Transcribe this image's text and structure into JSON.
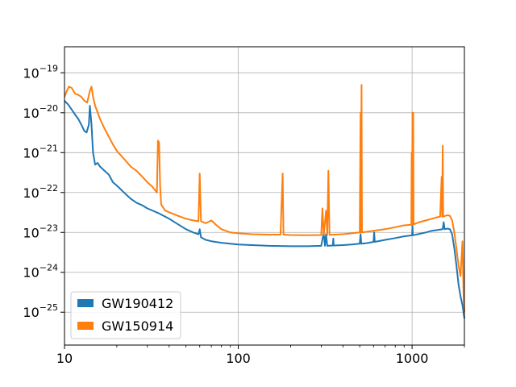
{
  "chart_data": {
    "type": "line",
    "title": "",
    "xlabel": "",
    "ylabel": "",
    "x_scale": "log",
    "y_scale": "log",
    "xlim": [
      10,
      2000
    ],
    "ylim": [
      1.5e-26,
      4.5e-19
    ],
    "grid": true,
    "legend_position": "lower-left",
    "x_ticks": [
      {
        "value": 10,
        "label": "10"
      },
      {
        "value": 100,
        "label": "100"
      },
      {
        "value": 1000,
        "label": "1000"
      }
    ],
    "y_ticks": [
      {
        "value": 1e-25,
        "mantissa": "10",
        "exponent": "−25"
      },
      {
        "value": 1e-24,
        "mantissa": "10",
        "exponent": "−24"
      },
      {
        "value": 1e-23,
        "mantissa": "10",
        "exponent": "−23"
      },
      {
        "value": 1e-22,
        "mantissa": "10",
        "exponent": "−22"
      },
      {
        "value": 1e-21,
        "mantissa": "10",
        "exponent": "−21"
      },
      {
        "value": 1e-20,
        "mantissa": "10",
        "exponent": "−20"
      },
      {
        "value": 1e-19,
        "mantissa": "10",
        "exponent": "−19"
      }
    ],
    "series": [
      {
        "name": "GW190412",
        "color": "#1f77b4",
        "points": [
          [
            10,
            2e-20
          ],
          [
            10.5,
            1.6e-20
          ],
          [
            11,
            1.2e-20
          ],
          [
            11.5,
            9e-21
          ],
          [
            12,
            7e-21
          ],
          [
            12.5,
            5e-21
          ],
          [
            13,
            3.5e-21
          ],
          [
            13.4,
            3.2e-21
          ],
          [
            13.8,
            5e-21
          ],
          [
            14.0,
            1.5e-20
          ],
          [
            14.3,
            5e-21
          ],
          [
            14.6,
            1e-21
          ],
          [
            15,
            5e-22
          ],
          [
            15.5,
            5.5e-22
          ],
          [
            16,
            4.5e-22
          ],
          [
            17,
            3.5e-22
          ],
          [
            18,
            2.8e-22
          ],
          [
            19,
            1.8e-22
          ],
          [
            20,
            1.5e-22
          ],
          [
            22,
            1e-22
          ],
          [
            24,
            7e-23
          ],
          [
            26,
            5.5e-23
          ],
          [
            28,
            4.8e-23
          ],
          [
            30,
            4e-23
          ],
          [
            35,
            3e-23
          ],
          [
            40,
            2.2e-23
          ],
          [
            45,
            1.6e-23
          ],
          [
            50,
            1.2e-23
          ],
          [
            55,
            1e-23
          ],
          [
            59,
            9e-24
          ],
          [
            60,
            1.2e-23
          ],
          [
            61,
            7.5e-24
          ],
          [
            65,
            6.5e-24
          ],
          [
            70,
            6e-24
          ],
          [
            80,
            5.5e-24
          ],
          [
            90,
            5.2e-24
          ],
          [
            100,
            5e-24
          ],
          [
            120,
            4.8e-24
          ],
          [
            150,
            4.6e-24
          ],
          [
            200,
            4.5e-24
          ],
          [
            250,
            4.5e-24
          ],
          [
            300,
            4.6e-24
          ],
          [
            310,
            1e-23
          ],
          [
            315,
            4.6e-24
          ],
          [
            320,
            9e-24
          ],
          [
            325,
            4.6e-24
          ],
          [
            350,
            4.7e-24
          ],
          [
            352,
            7e-24
          ],
          [
            354,
            4.7e-24
          ],
          [
            400,
            4.8e-24
          ],
          [
            450,
            5e-24
          ],
          [
            500,
            5.2e-24
          ],
          [
            505,
            9e-24
          ],
          [
            510,
            5.2e-24
          ],
          [
            550,
            5.4e-24
          ],
          [
            600,
            5.8e-24
          ],
          [
            605,
            1e-23
          ],
          [
            610,
            5.8e-24
          ],
          [
            700,
            6.5e-24
          ],
          [
            800,
            7.2e-24
          ],
          [
            900,
            8e-24
          ],
          [
            1000,
            8.5e-24
          ],
          [
            1005,
            1.5e-23
          ],
          [
            1010,
            8.5e-24
          ],
          [
            1100,
            9.2e-24
          ],
          [
            1200,
            1e-23
          ],
          [
            1300,
            1.1e-23
          ],
          [
            1400,
            1.15e-23
          ],
          [
            1500,
            1.2e-23
          ],
          [
            1520,
            1.8e-23
          ],
          [
            1540,
            1.2e-23
          ],
          [
            1600,
            1.25e-23
          ],
          [
            1650,
            1.2e-23
          ],
          [
            1700,
            9e-24
          ],
          [
            1750,
            4e-24
          ],
          [
            1800,
            1.5e-24
          ],
          [
            1850,
            5e-25
          ],
          [
            1900,
            2.5e-25
          ],
          [
            1950,
            1.5e-25
          ],
          [
            2000,
            7e-26
          ]
        ]
      },
      {
        "name": "GW150914",
        "color": "#ff7f0e",
        "points": [
          [
            10,
            2.5e-20
          ],
          [
            10.3,
            3.5e-20
          ],
          [
            10.6,
            4.5e-20
          ],
          [
            11,
            4.2e-20
          ],
          [
            11.5,
            3e-20
          ],
          [
            12,
            2.8e-20
          ],
          [
            12.5,
            2.5e-20
          ],
          [
            13,
            2e-20
          ],
          [
            13.5,
            1.8e-20
          ],
          [
            14,
            3.5e-20
          ],
          [
            14.3,
            4.5e-20
          ],
          [
            14.6,
            2.5e-20
          ],
          [
            15,
            1.5e-20
          ],
          [
            16,
            7e-21
          ],
          [
            17,
            4e-21
          ],
          [
            18,
            2.5e-21
          ],
          [
            19,
            1.6e-21
          ],
          [
            20,
            1.1e-21
          ],
          [
            22,
            7e-22
          ],
          [
            24,
            4.5e-22
          ],
          [
            26,
            3.5e-22
          ],
          [
            28,
            2.5e-22
          ],
          [
            30,
            1.8e-22
          ],
          [
            32,
            1.4e-22
          ],
          [
            34,
            1e-22
          ],
          [
            34.5,
            2e-21
          ],
          [
            35,
            1.8e-21
          ],
          [
            35.5,
            1.5e-22
          ],
          [
            36,
            5e-23
          ],
          [
            38,
            3.5e-23
          ],
          [
            40,
            3.2e-23
          ],
          [
            45,
            2.6e-23
          ],
          [
            50,
            2.2e-23
          ],
          [
            55,
            2e-23
          ],
          [
            59,
            1.9e-23
          ],
          [
            60,
            3e-22
          ],
          [
            61,
            1.9e-23
          ],
          [
            65,
            1.7e-23
          ],
          [
            70,
            2e-23
          ],
          [
            75,
            1.5e-23
          ],
          [
            80,
            1.2e-23
          ],
          [
            90,
            1e-23
          ],
          [
            100,
            9.5e-24
          ],
          [
            120,
            9e-24
          ],
          [
            150,
            8.8e-24
          ],
          [
            175,
            8.8e-24
          ],
          [
            180,
            3e-22
          ],
          [
            182,
            8.8e-24
          ],
          [
            200,
            8.6e-24
          ],
          [
            250,
            8.5e-24
          ],
          [
            300,
            8.6e-24
          ],
          [
            305,
            4e-23
          ],
          [
            310,
            8.6e-24
          ],
          [
            320,
            3.5e-23
          ],
          [
            325,
            8.6e-24
          ],
          [
            330,
            3.5e-22
          ],
          [
            335,
            8.7e-24
          ],
          [
            400,
            9e-24
          ],
          [
            450,
            9.5e-24
          ],
          [
            500,
            1e-23
          ],
          [
            505,
            1e-20
          ],
          [
            508,
            1e-23
          ],
          [
            512,
            5e-20
          ],
          [
            515,
            1e-23
          ],
          [
            600,
            1.1e-23
          ],
          [
            700,
            1.2e-23
          ],
          [
            800,
            1.35e-23
          ],
          [
            900,
            1.5e-23
          ],
          [
            990,
            1.55e-23
          ],
          [
            995,
            1e-21
          ],
          [
            1000,
            1.55e-23
          ],
          [
            1005,
            1e-20
          ],
          [
            1010,
            1.6e-23
          ],
          [
            1015,
            1e-20
          ],
          [
            1020,
            1.6e-23
          ],
          [
            1100,
            1.8e-23
          ],
          [
            1200,
            2e-23
          ],
          [
            1300,
            2.2e-23
          ],
          [
            1400,
            2.4e-23
          ],
          [
            1450,
            2.5e-23
          ],
          [
            1480,
            2.5e-22
          ],
          [
            1490,
            2.5e-23
          ],
          [
            1500,
            1.5e-21
          ],
          [
            1510,
            2.5e-23
          ],
          [
            1600,
            2.7e-23
          ],
          [
            1650,
            2.6e-23
          ],
          [
            1700,
            2e-23
          ],
          [
            1750,
            1e-23
          ],
          [
            1800,
            4e-24
          ],
          [
            1850,
            1.5e-24
          ],
          [
            1900,
            8e-25
          ],
          [
            1950,
            6e-24
          ],
          [
            1980,
            2e-25
          ],
          [
            2000,
            1e-25
          ]
        ]
      }
    ]
  }
}
